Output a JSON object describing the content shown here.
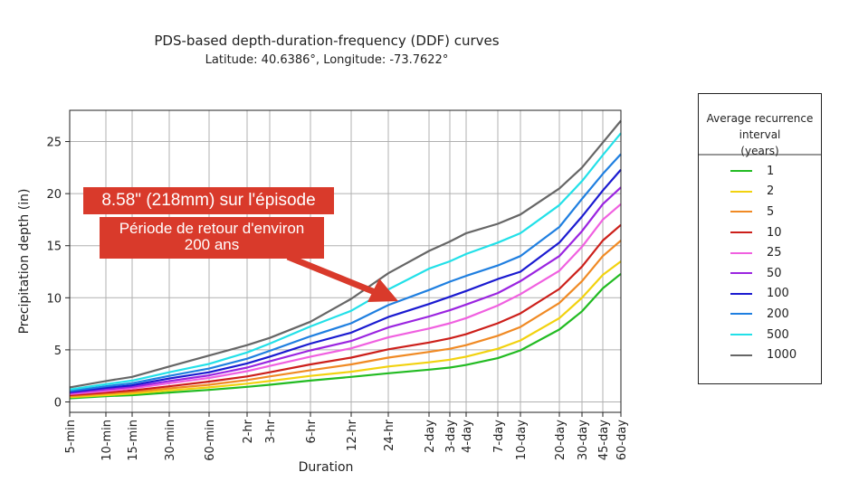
{
  "chart_data": {
    "type": "line",
    "title": "PDS-based depth-duration-frequency (DDF) curves",
    "subtitle": "Latitude: 40.6386°, Longitude: -73.7622°",
    "xlabel": "Duration",
    "ylabel": "Precipitation depth (in)",
    "categories": [
      "5-min",
      "10-min",
      "15-min",
      "30-min",
      "60-min",
      "2-hr",
      "3-hr",
      "6-hr",
      "12-hr",
      "24-hr",
      "2-day",
      "3-day",
      "4-day",
      "7-day",
      "10-day",
      "20-day",
      "30-day",
      "45-day",
      "60-day"
    ],
    "yticks": [
      0,
      5,
      10,
      15,
      20,
      25
    ],
    "ylim": [
      -1,
      28
    ],
    "grid": true,
    "legend_title": [
      "Average recurrence",
      "interval",
      "(years)"
    ],
    "series": [
      {
        "name": "1",
        "color": "#22bb22",
        "values": [
          0.35,
          0.55,
          0.65,
          0.9,
          1.15,
          1.45,
          1.65,
          2.05,
          2.4,
          2.75,
          3.1,
          3.3,
          3.55,
          4.2,
          4.95,
          6.95,
          8.7,
          10.9,
          12.3
        ]
      },
      {
        "name": "2",
        "color": "#f2d20f",
        "values": [
          0.45,
          0.65,
          0.8,
          1.1,
          1.4,
          1.75,
          2.0,
          2.5,
          2.9,
          3.4,
          3.8,
          4.05,
          4.35,
          5.1,
          5.9,
          8.05,
          10.0,
          12.2,
          13.5
        ]
      },
      {
        "name": "5",
        "color": "#f08a24",
        "values": [
          0.55,
          0.8,
          0.95,
          1.3,
          1.65,
          2.1,
          2.45,
          3.05,
          3.6,
          4.25,
          4.8,
          5.1,
          5.45,
          6.35,
          7.2,
          9.5,
          11.6,
          14.0,
          15.5
        ]
      },
      {
        "name": "10",
        "color": "#cc1f1a",
        "values": [
          0.65,
          0.9,
          1.1,
          1.5,
          1.95,
          2.45,
          2.85,
          3.6,
          4.25,
          5.05,
          5.7,
          6.1,
          6.5,
          7.55,
          8.5,
          10.85,
          13.0,
          15.5,
          17.0
        ]
      },
      {
        "name": "25",
        "color": "#f060e0",
        "values": [
          0.75,
          1.05,
          1.3,
          1.8,
          2.3,
          2.95,
          3.45,
          4.35,
          5.15,
          6.2,
          7.05,
          7.55,
          8.05,
          9.25,
          10.35,
          12.6,
          14.9,
          17.5,
          19.0
        ]
      },
      {
        "name": "50",
        "color": "#9a24e0",
        "values": [
          0.85,
          1.2,
          1.45,
          2.0,
          2.55,
          3.3,
          3.9,
          4.95,
          5.85,
          7.15,
          8.2,
          8.8,
          9.35,
          10.45,
          11.6,
          14.0,
          16.4,
          19.0,
          20.6
        ]
      },
      {
        "name": "100",
        "color": "#1a1ad0",
        "values": [
          0.95,
          1.35,
          1.6,
          2.25,
          2.85,
          3.7,
          4.35,
          5.6,
          6.65,
          8.15,
          9.4,
          10.1,
          10.65,
          11.8,
          12.5,
          15.3,
          17.8,
          20.3,
          22.3
        ]
      },
      {
        "name": "200",
        "color": "#1f7fe0",
        "values": [
          1.05,
          1.5,
          1.8,
          2.5,
          3.2,
          4.15,
          4.9,
          6.3,
          7.55,
          9.3,
          10.75,
          11.55,
          12.1,
          13.1,
          14.0,
          16.8,
          19.5,
          21.9,
          23.8
        ]
      },
      {
        "name": "500",
        "color": "#22e0e8",
        "values": [
          1.2,
          1.7,
          2.05,
          2.85,
          3.65,
          4.75,
          5.6,
          7.25,
          8.75,
          10.8,
          12.8,
          13.5,
          14.2,
          15.3,
          16.2,
          18.9,
          21.2,
          23.7,
          25.8
        ]
      },
      {
        "name": "1000",
        "color": "#666666",
        "values": [
          1.4,
          2.0,
          2.4,
          3.4,
          4.45,
          5.45,
          6.15,
          7.7,
          9.9,
          12.35,
          14.5,
          15.4,
          16.2,
          17.1,
          18.0,
          20.5,
          22.5,
          24.9,
          27.0
        ]
      }
    ],
    "annotations": [
      {
        "text": "8.58\" (218mm) sur l'épisode"
      },
      {
        "text_lines": [
          "Période de retour d'environ",
          "200 ans"
        ]
      }
    ]
  }
}
